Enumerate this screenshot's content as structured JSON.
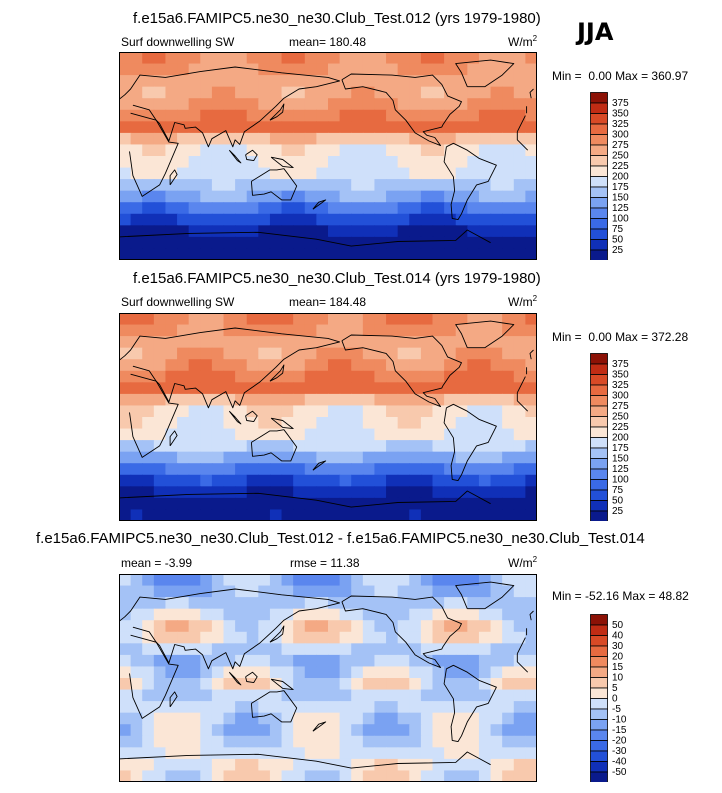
{
  "season": "JJA",
  "panels": [
    {
      "title": "f.e15a6.FAMIPC5.ne30_ne30.Club_Test.012 (yrs 1979-1980)",
      "variable": "Surf downwelling SW",
      "mean_label": "mean=",
      "mean_value": "180.48",
      "unit_base": "W/m",
      "unit_exp": "2",
      "min_label": "Min =",
      "min_value": "0.00",
      "max_label": "Max =",
      "max_value": "360.97"
    },
    {
      "title": "f.e15a6.FAMIPC5.ne30_ne30.Club_Test.014 (yrs 1979-1980)",
      "variable": "Surf downwelling SW",
      "mean_label": "mean=",
      "mean_value": "184.48",
      "unit_base": "W/m",
      "unit_exp": "2",
      "min_label": "Min =",
      "min_value": "0.00",
      "max_label": "Max =",
      "max_value": "372.28"
    },
    {
      "title": "f.e15a6.FAMIPC5.ne30_ne30.Club_Test.012 - f.e15a6.FAMIPC5.ne30_ne30.Club_Test.014",
      "mean_label": "mean =",
      "mean_value": "-3.99",
      "rmse_label": "rmse =",
      "rmse_value": "11.38",
      "unit_base": "W/m",
      "unit_exp": "2",
      "min_label": "Min =",
      "min_value": "-52.16",
      "max_label": "Max =",
      "max_value": "48.82"
    }
  ],
  "chart_data": [
    {
      "type": "heatmap",
      "title": "f.e15a6.FAMIPC5.ne30_ne30.Club_Test.012 (yrs 1979-1980)",
      "variable": "Surf downwelling SW",
      "units": "W/m2",
      "mean": 180.48,
      "min": 0.0,
      "max": 360.97,
      "colorbar_levels": [
        25,
        50,
        75,
        100,
        125,
        150,
        175,
        200,
        225,
        250,
        275,
        300,
        325,
        350,
        375
      ],
      "colorbar_colors": [
        "#0a1a8c",
        "#1030b8",
        "#2250d8",
        "#3a6ae6",
        "#5a86ee",
        "#7aa2f2",
        "#a4c2f6",
        "#cfe0fa",
        "#fbe6d6",
        "#f8c9ad",
        "#f4a984",
        "#ef8a5f",
        "#e76a40",
        "#d84a26",
        "#c02c14",
        "#8c1206"
      ],
      "zonal_profile": [
        {
          "lat": 80,
          "value": 285
        },
        {
          "lat": 60,
          "value": 255
        },
        {
          "lat": 40,
          "value": 285
        },
        {
          "lat": 25,
          "value": 305
        },
        {
          "lat": 10,
          "value": 215
        },
        {
          "lat": 0,
          "value": 205
        },
        {
          "lat": -15,
          "value": 195
        },
        {
          "lat": -30,
          "value": 160
        },
        {
          "lat": -45,
          "value": 95
        },
        {
          "lat": -60,
          "value": 35
        },
        {
          "lat": -75,
          "value": 5
        }
      ]
    },
    {
      "type": "heatmap",
      "title": "f.e15a6.FAMIPC5.ne30_ne30.Club_Test.014 (yrs 1979-1980)",
      "variable": "Surf downwelling SW",
      "units": "W/m2",
      "mean": 184.48,
      "min": 0.0,
      "max": 372.28,
      "colorbar_levels": [
        25,
        50,
        75,
        100,
        125,
        150,
        175,
        200,
        225,
        250,
        275,
        300,
        325,
        350,
        375
      ],
      "colorbar_colors": [
        "#0a1a8c",
        "#1030b8",
        "#2250d8",
        "#3a6ae6",
        "#5a86ee",
        "#7aa2f2",
        "#a4c2f6",
        "#cfe0fa",
        "#fbe6d6",
        "#f8c9ad",
        "#f4a984",
        "#ef8a5f",
        "#e76a40",
        "#d84a26",
        "#c02c14",
        "#8c1206"
      ],
      "zonal_profile": [
        {
          "lat": 80,
          "value": 290
        },
        {
          "lat": 60,
          "value": 255
        },
        {
          "lat": 40,
          "value": 290
        },
        {
          "lat": 25,
          "value": 310
        },
        {
          "lat": 10,
          "value": 220
        },
        {
          "lat": 0,
          "value": 210
        },
        {
          "lat": -15,
          "value": 200
        },
        {
          "lat": -30,
          "value": 165
        },
        {
          "lat": -45,
          "value": 100
        },
        {
          "lat": -60,
          "value": 38
        },
        {
          "lat": -75,
          "value": 5
        }
      ]
    },
    {
      "type": "heatmap",
      "title": "f.e15a6.FAMIPC5.ne30_ne30.Club_Test.012 - f.e15a6.FAMIPC5.ne30_ne30.Club_Test.014",
      "units": "W/m2",
      "mean": -3.99,
      "rmse": 11.38,
      "min": -52.16,
      "max": 48.82,
      "colorbar_levels": [
        -50,
        -40,
        -30,
        -20,
        -15,
        -10,
        -5,
        0,
        5,
        10,
        15,
        20,
        30,
        40,
        50
      ],
      "colorbar_colors": [
        "#0a1a8c",
        "#1030b8",
        "#2250d8",
        "#3a6ae6",
        "#5a86ee",
        "#7aa2f2",
        "#a4c2f6",
        "#cfe0fa",
        "#fbe6d6",
        "#f8c9ad",
        "#f4a984",
        "#ef8a5f",
        "#e76a40",
        "#d84a26",
        "#c02c14",
        "#8c1206"
      ],
      "zonal_profile": [
        {
          "lat": 80,
          "value": -10
        },
        {
          "lat": 60,
          "value": -5
        },
        {
          "lat": 40,
          "value": 5
        },
        {
          "lat": 25,
          "value": -5
        },
        {
          "lat": 10,
          "value": -10
        },
        {
          "lat": 0,
          "value": 3
        },
        {
          "lat": -15,
          "value": -5
        },
        {
          "lat": -30,
          "value": -3
        },
        {
          "lat": -45,
          "value": -5
        },
        {
          "lat": -60,
          "value": -2
        },
        {
          "lat": -75,
          "value": 1
        }
      ]
    }
  ]
}
